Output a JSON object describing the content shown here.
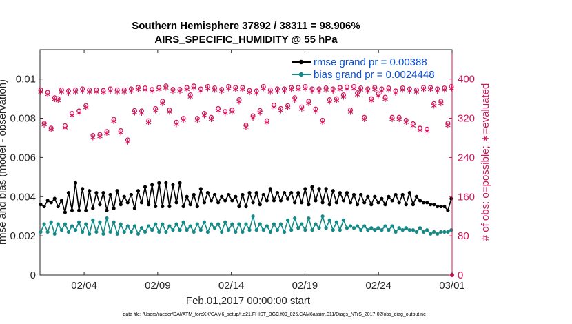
{
  "colors": {
    "rmse": "#000000",
    "bias": "#138a86",
    "obs": "#d4145a",
    "legend_text": "#0a4fd6",
    "axis": "#262626"
  },
  "chart_data": {
    "type": "line",
    "title": "Southern Hemisphere 37892 / 38311 = 98.906%",
    "subtitle": "AIRS_SPECIFIC_HUMIDITY @ 55 hPa",
    "xlabel": "Feb.01,2017 00:00:00 start",
    "ylabel_left": "rmse and bias (model - observation)",
    "ylabel_right": "# of obs: o=possible; ∗=evaluated",
    "footer": "data file: /Users/raeder/DAI/ATM_forcXX/CAM6_setup/f.e21.FHIST_BGC.f09_025.CAM6assim.011/Diags_NTrS_2017-02/obs_diag_output.nc",
    "x_tick_labels": [
      "02/04",
      "02/09",
      "02/14",
      "02/19",
      "02/24",
      "03/01"
    ],
    "y_left_tick_labels": [
      "0",
      "0.002",
      "0.004",
      "0.006",
      "0.008",
      "0.01"
    ],
    "y_right_tick_labels": [
      "0",
      "80",
      "160",
      "240",
      "320",
      "400"
    ],
    "xlim": [
      1,
      29
    ],
    "ylim_left": [
      0,
      0.0115
    ],
    "ylim_right": [
      0,
      460
    ],
    "legend": {
      "rmse": "rmse grand pr = 0.00388",
      "bias": "bias grand pr = 0.0024448"
    },
    "rmse": [
      0.0036,
      0.0035,
      0.0038,
      0.0037,
      0.0039,
      0.0035,
      0.0038,
      0.0032,
      0.0042,
      0.0033,
      0.0047,
      0.0033,
      0.0044,
      0.0033,
      0.0043,
      0.0034,
      0.0042,
      0.0036,
      0.0042,
      0.0033,
      0.0041,
      0.0034,
      0.0043,
      0.0036,
      0.004,
      0.0037,
      0.0041,
      0.0034,
      0.0043,
      0.0037,
      0.0045,
      0.0036,
      0.0046,
      0.0035,
      0.0047,
      0.0035,
      0.0047,
      0.0035,
      0.0046,
      0.0037,
      0.0047,
      0.0035,
      0.004,
      0.0036,
      0.0041,
      0.0035,
      0.0044,
      0.0037,
      0.0042,
      0.0038,
      0.0041,
      0.0037,
      0.004,
      0.0038,
      0.0041,
      0.0038,
      0.004,
      0.0035,
      0.0041,
      0.0035,
      0.0042,
      0.0037,
      0.0042,
      0.0036,
      0.0041,
      0.0038,
      0.0044,
      0.0038,
      0.0042,
      0.0038,
      0.0042,
      0.0039,
      0.0042,
      0.0037,
      0.0042,
      0.0037,
      0.0044,
      0.0036,
      0.0045,
      0.0038,
      0.0044,
      0.0037,
      0.0044,
      0.0036,
      0.0043,
      0.0037,
      0.0042,
      0.0038,
      0.0042,
      0.0037,
      0.0041,
      0.0036,
      0.0041,
      0.0037,
      0.004,
      0.0036,
      0.004,
      0.0037,
      0.0039,
      0.0036,
      0.004,
      0.0038,
      0.0041,
      0.0037,
      0.0041,
      0.0036,
      0.0042,
      0.0036,
      0.004,
      0.0038,
      0.0037,
      0.0037,
      0.0036,
      0.0036,
      0.0035,
      0.0035,
      0.0035,
      0.0033,
      0.0039
    ],
    "bias": [
      0.0022,
      0.0026,
      0.0022,
      0.0027,
      0.0021,
      0.0026,
      0.0023,
      0.0026,
      0.0022,
      0.0025,
      0.0023,
      0.0027,
      0.0022,
      0.0026,
      0.0021,
      0.0028,
      0.0022,
      0.0027,
      0.0021,
      0.0029,
      0.0022,
      0.0027,
      0.0021,
      0.0026,
      0.0022,
      0.0025,
      0.0022,
      0.0025,
      0.0021,
      0.0024,
      0.0022,
      0.0025,
      0.0023,
      0.0026,
      0.0022,
      0.0026,
      0.0022,
      0.0025,
      0.0023,
      0.0026,
      0.0023,
      0.0027,
      0.0023,
      0.0025,
      0.0022,
      0.0026,
      0.0023,
      0.0027,
      0.0022,
      0.0026,
      0.0024,
      0.0026,
      0.0022,
      0.0027,
      0.0023,
      0.0026,
      0.0022,
      0.0026,
      0.0022,
      0.0026,
      0.0023,
      0.003,
      0.0023,
      0.0026,
      0.0023,
      0.0025,
      0.0022,
      0.0026,
      0.0023,
      0.0026,
      0.0022,
      0.0028,
      0.0023,
      0.0029,
      0.0024,
      0.0026,
      0.0023,
      0.0029,
      0.0023,
      0.0026,
      0.0024,
      0.003,
      0.0024,
      0.0028,
      0.0023,
      0.0027,
      0.0023,
      0.0028,
      0.0024,
      0.0025,
      0.0024,
      0.0025,
      0.0023,
      0.0025,
      0.0023,
      0.0024,
      0.0023,
      0.0024,
      0.0023,
      0.0025,
      0.0023,
      0.0025,
      0.0022,
      0.0024,
      0.0023,
      0.0024,
      0.0023,
      0.0023,
      0.0022,
      0.0024,
      0.0022,
      0.0023,
      0.0021,
      0.0022,
      0.0021,
      0.0022,
      0.0022,
      0.0022,
      0.0023
    ],
    "obs_possible": [
      378,
      310,
      373,
      300,
      362,
      360,
      378,
      305,
      376,
      330,
      378,
      335,
      380,
      346,
      378,
      285,
      378,
      287,
      377,
      293,
      380,
      318,
      378,
      295,
      378,
      276,
      380,
      336,
      383,
      335,
      382,
      315,
      379,
      340,
      383,
      355,
      386,
      337,
      379,
      312,
      379,
      320,
      383,
      368,
      386,
      320,
      380,
      330,
      385,
      322,
      382,
      340,
      379,
      334,
      385,
      337,
      383,
      358,
      383,
      306,
      377,
      325,
      376,
      336,
      385,
      315,
      378,
      347,
      380,
      340,
      380,
      346,
      383,
      362,
      383,
      343,
      385,
      355,
      380,
      339,
      380,
      316,
      382,
      358,
      380,
      360,
      383,
      368,
      384,
      337,
      385,
      372,
      382,
      322,
      380,
      360,
      383,
      370,
      380,
      363,
      382,
      322,
      376,
      322,
      382,
      316,
      380,
      309,
      378,
      300,
      383,
      298,
      383,
      350,
      380,
      355,
      382,
      310,
      385
    ],
    "obs_evaluated": [
      375,
      308,
      370,
      298,
      360,
      357,
      375,
      302,
      373,
      327,
      375,
      332,
      377,
      343,
      375,
      282,
      375,
      284,
      374,
      290,
      377,
      315,
      375,
      292,
      375,
      273,
      377,
      333,
      380,
      332,
      379,
      312,
      376,
      337,
      380,
      352,
      383,
      334,
      376,
      309,
      376,
      317,
      380,
      365,
      383,
      317,
      377,
      327,
      382,
      319,
      379,
      337,
      376,
      331,
      382,
      334,
      380,
      355,
      380,
      303,
      374,
      322,
      373,
      333,
      382,
      312,
      375,
      344,
      377,
      337,
      377,
      343,
      380,
      359,
      380,
      340,
      382,
      352,
      377,
      336,
      377,
      313,
      379,
      355,
      377,
      357,
      380,
      365,
      381,
      334,
      382,
      369,
      379,
      319,
      377,
      357,
      380,
      367,
      377,
      360,
      379,
      319,
      373,
      319,
      379,
      313,
      377,
      306,
      375,
      297,
      380,
      295,
      380,
      347,
      377,
      352,
      379,
      307,
      382
    ]
  }
}
